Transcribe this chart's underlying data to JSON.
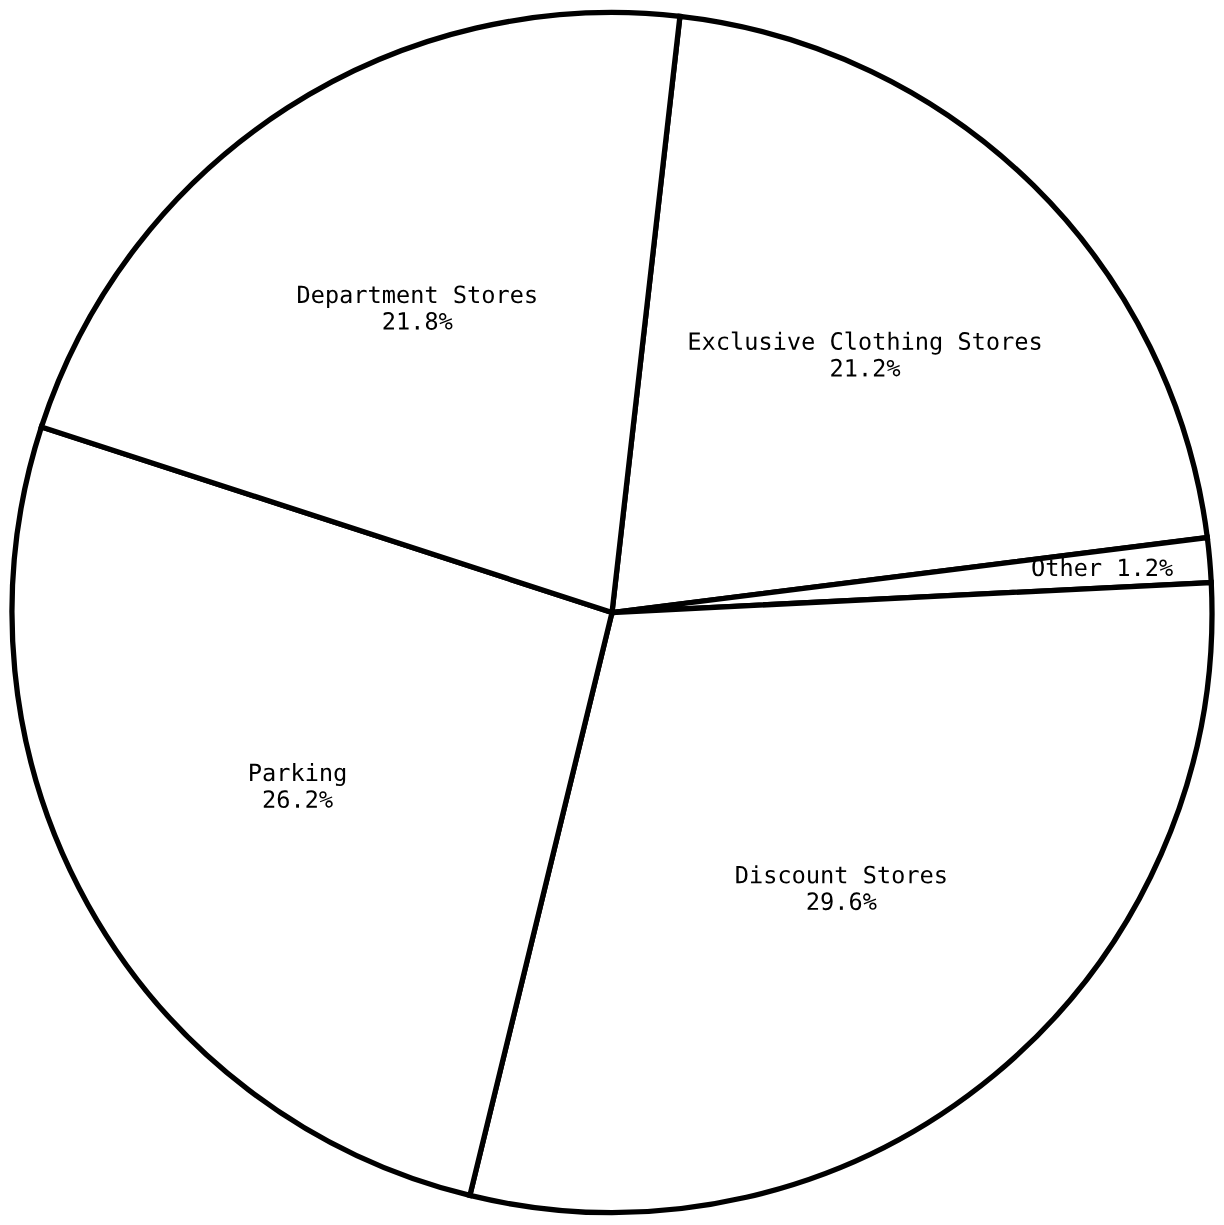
{
  "chart_data": {
    "type": "pie",
    "categories": [
      "Exclusive Clothing Stores",
      "Other",
      "Discount Stores",
      "Parking",
      "Department Stores"
    ],
    "values": [
      21.2,
      1.2,
      29.6,
      26.2,
      21.8
    ],
    "value_labels": [
      "21.2%",
      "1.2%",
      "29.6%",
      "26.2%",
      "21.8%"
    ],
    "colors": [
      "#ffffff",
      "#ffffff",
      "#ffffff",
      "#ffffff",
      "#ffffff"
    ],
    "legend": false
  }
}
